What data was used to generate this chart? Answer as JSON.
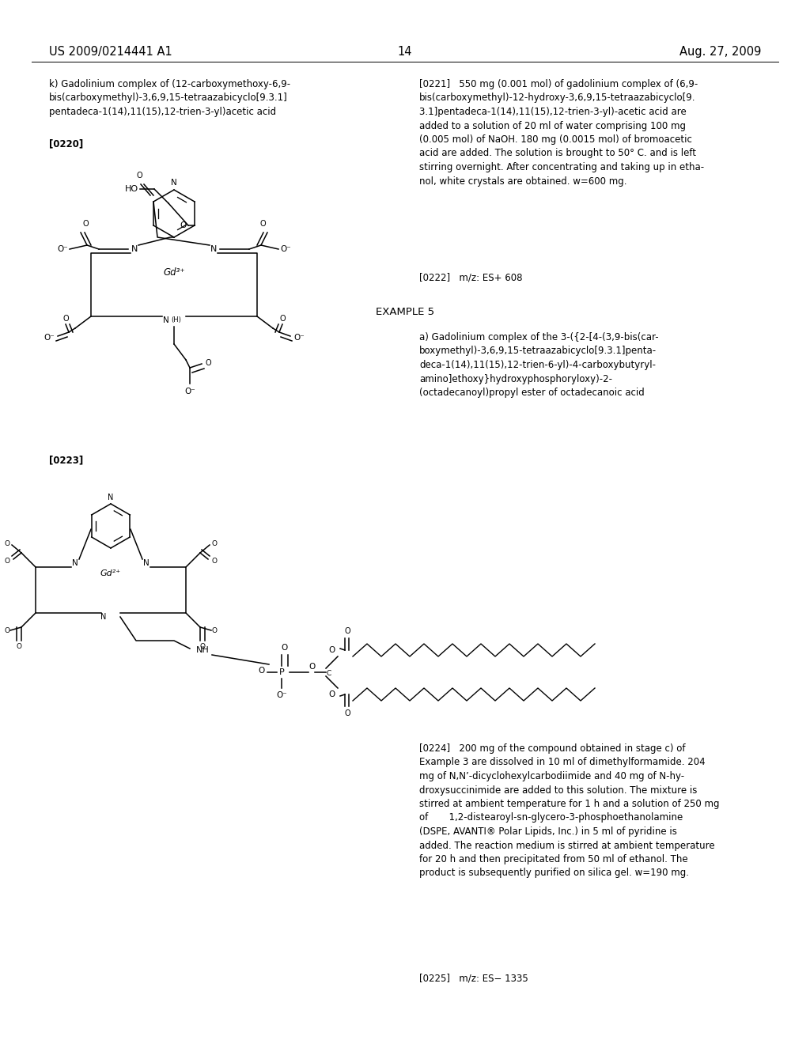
{
  "background_color": "#ffffff",
  "header_left": "US 2009/0214441 A1",
  "header_center": "14",
  "header_right": "Aug. 27, 2009",
  "left_text_k": "k) Gadolinium complex of (12-carboxymethoxy-6,9-\nbis(carboxymethyl)-3,6,9,15-tetraazabicyclo[9.3.1]\npentadeca-1(14),11(15),12-trien-3-yl)acetic acid",
  "label_0220": "[0220]",
  "label_0221": "[0221]",
  "text_0221": "   550 mg (0.001 mol) of gadolinium complex of (6,9-\nbis(carboxymethyl)-12-hydroxy-3,6,9,15-tetraazabicyclo[9.\n3.1]pentadeca-1(14),11(15),12-trien-3-yl)-acetic acid are\nadded to a solution of 20 ml of water comprising 100 mg\n(0.005 mol) of NaOH. 180 mg (0.0015 mol) of bromoacetic\nacid are added. The solution is brought to 50° C. and is left\nstirring overnight. After concentrating and taking up in etha-\nnol, white crystals are obtained. w=600 mg.",
  "label_0222": "[0222]",
  "text_0222": "   m/z: ES+ 608",
  "text_example5": "EXAMPLE 5",
  "text_example5a": "a) Gadolinium complex of the 3-({2-[4-(3,9-bis(car-\nboxymethyl)-3,6,9,15-tetraazabicyclo[9.3.1]penta-\ndeca-1(14),11(15),12-trien-6-yl)-4-carboxybutyryl-\namino]ethoxy}hydroxyphosphoryloxy)-2-\n(octadecanoyl)propyl ester of octadecanoic acid",
  "label_0223": "[0223]",
  "label_0224": "[0224]",
  "text_0224": "   200 mg of the compound obtained in stage c) of\nExample 3 are dissolved in 10 ml of dimethylformamide. 204\nmg of N,N’-dicyclohexylcarbodiimide and 40 mg of N-hy-\ndroxysuccinimide are added to this solution. The mixture is\nstirred at ambient temperature for 1 h and a solution of 250 mg\nof       1,2-distearoyl-sn-glycero-3-phosphoethanolamine\n(DSPE, AVANTI® Polar Lipids, Inc.) in 5 ml of pyridine is\nadded. The reaction medium is stirred at ambient temperature\nfor 20 h and then precipitated from 50 ml of ethanol. The\nproduct is subsequently purified on silica gel. w=190 mg.",
  "label_0225": "[0225]",
  "text_0225": "   m/z: ES− 1335"
}
